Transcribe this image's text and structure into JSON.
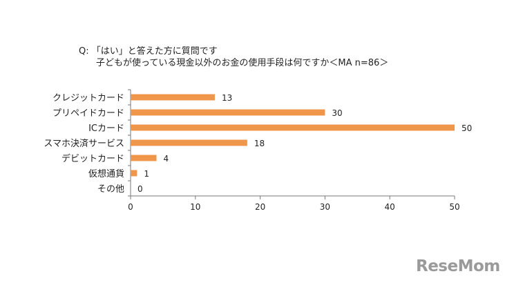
{
  "question": {
    "line1": "Q: 「はい」と答えた方に質問です",
    "line2": "子どもが使っている現金以外のお金の使用手段は何ですか＜MA n=86＞"
  },
  "chart_data": {
    "type": "bar",
    "orientation": "horizontal",
    "categories": [
      "クレジットカード",
      "プリペイドカード",
      "ICカード",
      "スマホ決済サービス",
      "デビットカード",
      "仮想通貨",
      "その他"
    ],
    "values": [
      13,
      30,
      50,
      18,
      4,
      1,
      0
    ],
    "xlim": [
      0,
      50
    ],
    "xticks": [
      "0",
      "10",
      "20",
      "30",
      "40",
      "50"
    ],
    "data_labels": [
      "13",
      "30",
      "50",
      "18",
      "4",
      "1",
      "0"
    ],
    "bar_color": "#f0964b",
    "grid": false,
    "legend": "none"
  },
  "logo": {
    "text": "ReseMom"
  }
}
